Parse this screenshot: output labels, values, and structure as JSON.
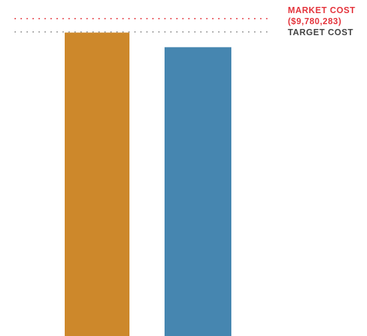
{
  "chart_data": {
    "type": "bar",
    "categories": [
      "",
      ""
    ],
    "values": [
      9350000,
      8900000
    ],
    "colors": [
      "#cd882b",
      "#4686b0"
    ],
    "ylim": [
      0,
      9780283
    ],
    "grid": false,
    "reference_lines": [
      {
        "id": "market",
        "label_line1": "MARKET COST",
        "label_line2": "($9,780,283)",
        "value": 9780283,
        "color": "#e4343c",
        "style": "dotted"
      },
      {
        "id": "target",
        "label_line1": "TARGET COST",
        "value": 9350000,
        "color": "#555555",
        "style": "dotted"
      }
    ]
  }
}
